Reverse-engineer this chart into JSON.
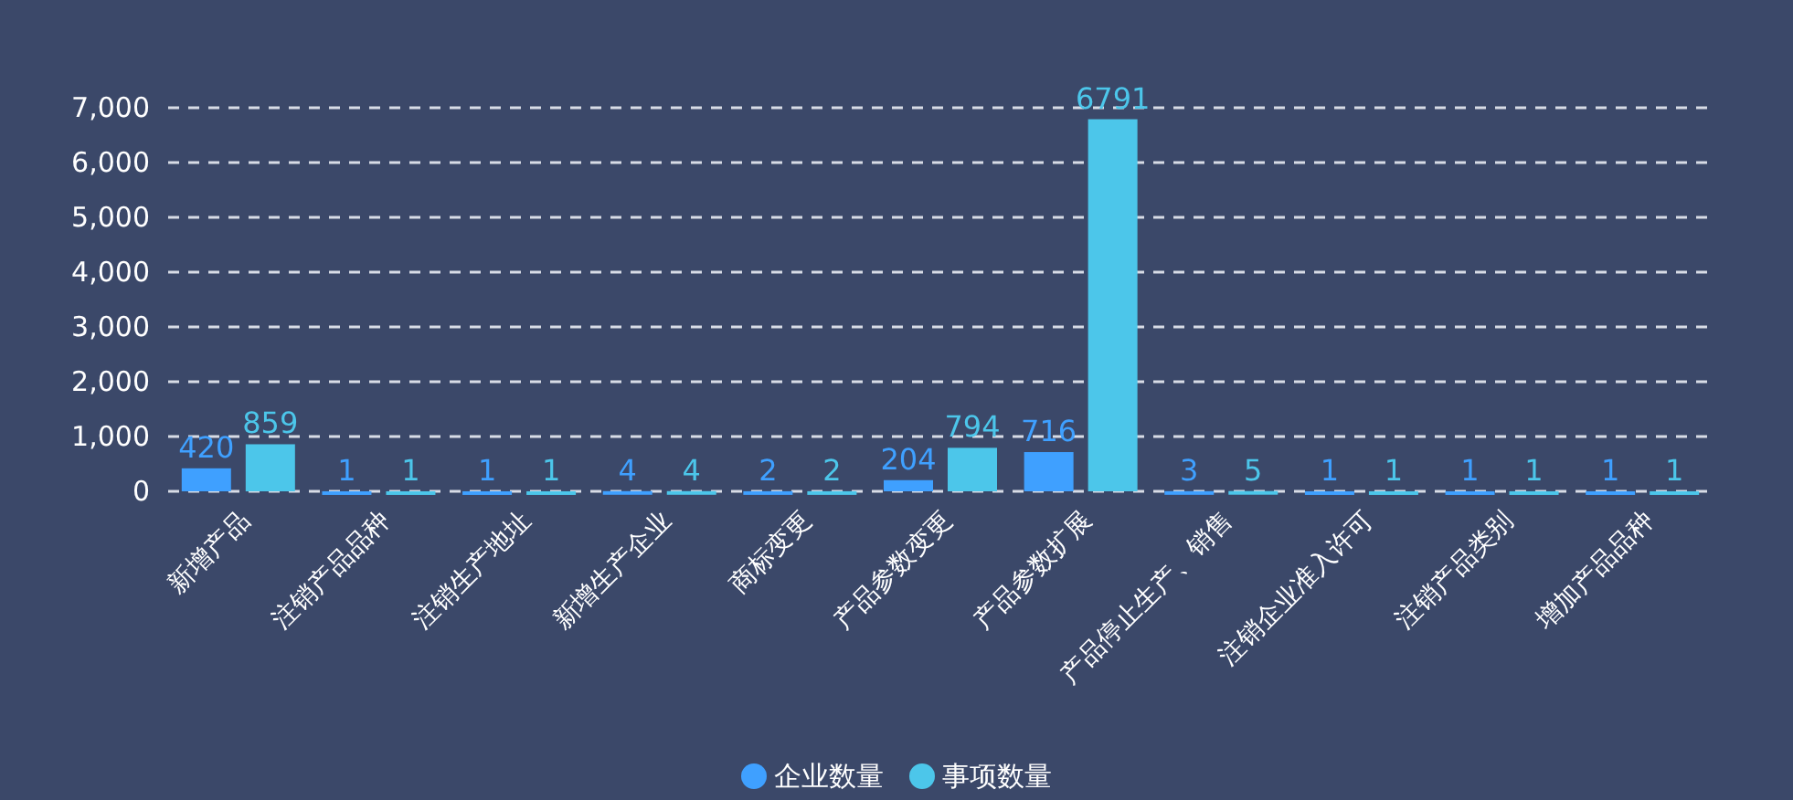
{
  "chart_data": {
    "type": "bar",
    "categories": [
      "新增产品",
      "注销产品品种",
      "注销生产地址",
      "新增生产企业",
      "商标变更",
      "产品参数变更",
      "产品参数扩展",
      "产品停止生产、销售",
      "注销企业准入许可",
      "注销产品类别",
      "增加产品品种"
    ],
    "series": [
      {
        "name": "企业数量",
        "color": "#3fa0ff",
        "values": [
          420,
          1,
          1,
          4,
          2,
          204,
          716,
          3,
          1,
          1,
          1
        ]
      },
      {
        "name": "事项数量",
        "color": "#4cc6ea",
        "values": [
          859,
          1,
          1,
          4,
          2,
          794,
          6791,
          5,
          1,
          1,
          1
        ]
      }
    ],
    "ylim": [
      0,
      7000
    ],
    "yticks": [
      0,
      {
        "value": 1000,
        "label": "1,000"
      },
      {
        "value": 2000,
        "label": "2,000"
      },
      {
        "value": 3000,
        "label": "3,000"
      },
      {
        "value": 4000,
        "label": "4,000"
      },
      {
        "value": 5000,
        "label": "5,000"
      },
      {
        "value": 6000,
        "label": "6,000"
      },
      {
        "value": 7000,
        "label": "7,000"
      }
    ],
    "grid": "y",
    "legend": "bottom",
    "data_labels": true
  }
}
